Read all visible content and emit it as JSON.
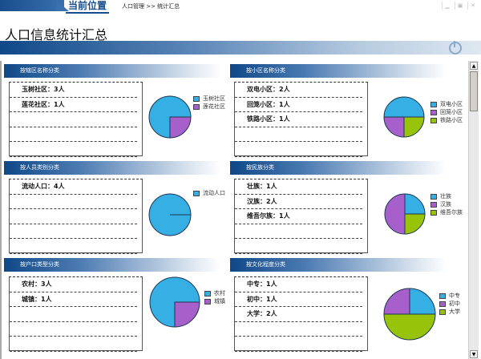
{
  "header": {
    "location_label": "当前位置",
    "breadcrumb": "人口管理 >> 统计汇总",
    "title": "人口信息统计汇总"
  },
  "colors": {
    "blue": "#36b0e4",
    "purple": "#a75fcb",
    "green": "#97c40a"
  },
  "sections": [
    {
      "title": "按辖区名称分类",
      "items": [
        {
          "text": "玉树社区：3人",
          "label": "玉树社区",
          "value": 3
        },
        {
          "text": "莲花社区：1人",
          "label": "莲花社区",
          "value": 1
        }
      ]
    },
    {
      "title": "按小区名称分类",
      "items": [
        {
          "text": "双电小区：2人",
          "label": "双电小区",
          "value": 2
        },
        {
          "text": "回笼小区：1人",
          "label": "回笼小区",
          "value": 1
        },
        {
          "text": "铁路小区：1人",
          "label": "铁路小区",
          "value": 1
        }
      ]
    },
    {
      "title": "按人员类别分类",
      "items": [
        {
          "text": "流动人口：4人",
          "label": "流动人口",
          "value": 4
        }
      ]
    },
    {
      "title": "按民族分类",
      "items": [
        {
          "text": "壮族：1人",
          "label": "壮族",
          "value": 1
        },
        {
          "text": "汉族：2人",
          "label": "汉族",
          "value": 2
        },
        {
          "text": "维吾尔族：1人",
          "label": "维吾尔族",
          "value": 1
        }
      ]
    },
    {
      "title": "按户口类型分类",
      "items": [
        {
          "text": "农村：3人",
          "label": "农村",
          "value": 3
        },
        {
          "text": "城镇：1人",
          "label": "城镇",
          "value": 1
        }
      ]
    },
    {
      "title": "按文化程度分类",
      "items": [
        {
          "text": "中专：1人",
          "label": "中专",
          "value": 1
        },
        {
          "text": "初中：1人",
          "label": "初中",
          "value": 1
        },
        {
          "text": "大学：2人",
          "label": "大学",
          "value": 2
        }
      ]
    }
  ],
  "chart_data": [
    {
      "type": "pie",
      "categories": [
        "玉树社区",
        "莲花社区"
      ],
      "values": [
        3,
        1
      ]
    },
    {
      "type": "pie",
      "categories": [
        "双电小区",
        "回笼小区",
        "铁路小区"
      ],
      "values": [
        2,
        1,
        1
      ]
    },
    {
      "type": "pie",
      "categories": [
        "流动人口"
      ],
      "values": [
        4
      ]
    },
    {
      "type": "pie",
      "categories": [
        "壮族",
        "汉族",
        "维吾尔族"
      ],
      "values": [
        1,
        2,
        1
      ]
    },
    {
      "type": "pie",
      "categories": [
        "农村",
        "城镇"
      ],
      "values": [
        3,
        1
      ]
    },
    {
      "type": "pie",
      "categories": [
        "中专",
        "初中",
        "大学"
      ],
      "values": [
        1,
        1,
        2
      ]
    }
  ]
}
